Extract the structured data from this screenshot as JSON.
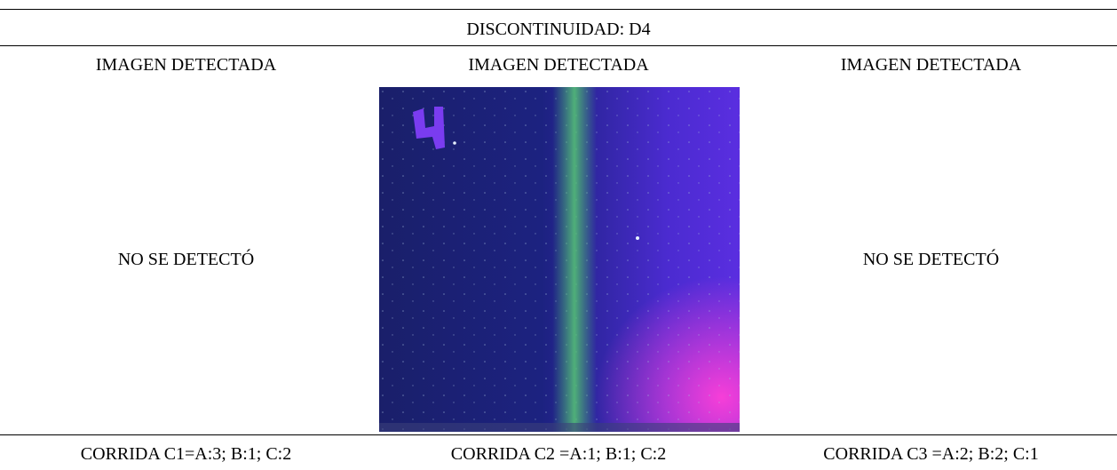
{
  "table": {
    "title": "DISCONTINUIDAD: D4",
    "headers": [
      "IMAGEN DETECTADA",
      "IMAGEN DETECTADA",
      "IMAGEN DETECTADA"
    ],
    "results": {
      "left": "NO SE DETECTÓ",
      "right": "NO SE DETECTÓ"
    },
    "footers": [
      "CORRIDA C1=A:3; B:1; C:2",
      "CORRIDA C2 =A:1; B:1; C:2",
      "CORRIDA C3 =A:2; B:2; C:1"
    ]
  }
}
